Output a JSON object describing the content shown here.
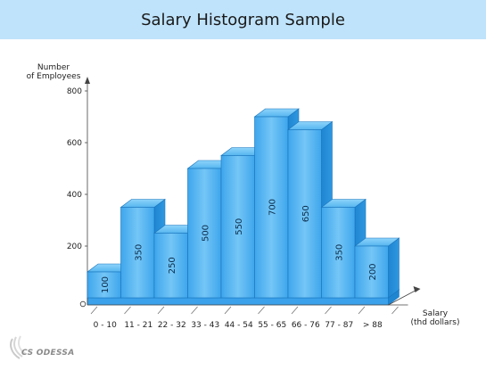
{
  "header": {
    "title": "Salary Histogram Sample"
  },
  "chart_data": {
    "type": "bar",
    "title": "Salary Histogram Sample",
    "ylabel_lines": [
      "Number",
      "of Employees"
    ],
    "xlabel_lines": [
      "Salary",
      "(thd dollars)"
    ],
    "categories": [
      "0 - 10",
      "11 - 21",
      "22 - 32",
      "33 - 43",
      "44 - 54",
      "55 - 65",
      "66 - 76",
      "77 - 87",
      "> 88"
    ],
    "values": [
      100,
      350,
      250,
      500,
      550,
      700,
      650,
      350,
      200
    ],
    "ylim": [
      0,
      800
    ],
    "yticks": [
      0,
      200,
      400,
      600,
      800
    ],
    "bar_color": "#5bb8f0",
    "grid": false,
    "legend": "none"
  },
  "branding": {
    "logo_text": "CS ODESSA"
  }
}
